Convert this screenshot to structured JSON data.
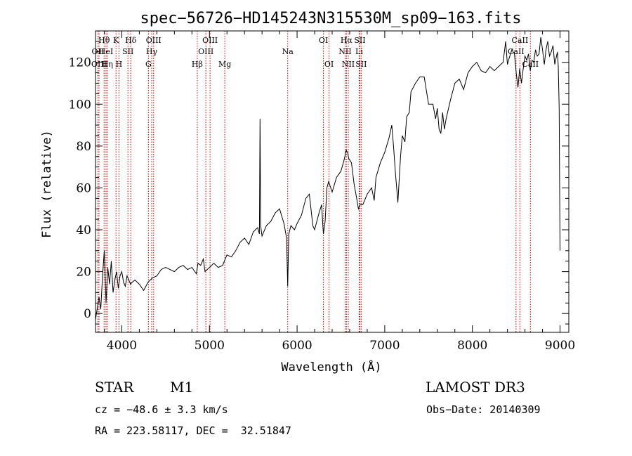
{
  "chart_data": {
    "type": "line",
    "title": "spec−56726−HD145243N315530M_sp09−163.fits",
    "xlabel": "Wavelength (Å)",
    "ylabel": "Flux (relative)",
    "xlim": [
      3700,
      9100
    ],
    "ylim": [
      -9,
      135
    ],
    "xticks": [
      4000,
      5000,
      6000,
      7000,
      8000,
      9000
    ],
    "yticks": [
      0,
      20,
      40,
      60,
      80,
      100,
      120
    ],
    "x_minor_step": 200,
    "y_minor_step": 5,
    "spectrum": {
      "x": [
        3700,
        3740,
        3760,
        3780,
        3800,
        3820,
        3840,
        3860,
        3880,
        3900,
        3920,
        3940,
        3960,
        3980,
        4000,
        4020,
        4040,
        4060,
        4080,
        4100,
        4120,
        4150,
        4200,
        4250,
        4300,
        4350,
        4400,
        4450,
        4500,
        4550,
        4600,
        4650,
        4700,
        4750,
        4800,
        4850,
        4870,
        4900,
        4930,
        4950,
        5000,
        5050,
        5100,
        5150,
        5200,
        5250,
        5300,
        5350,
        5400,
        5450,
        5500,
        5550,
        5570,
        5577,
        5584,
        5600,
        5650,
        5700,
        5750,
        5800,
        5850,
        5880,
        5893,
        5906,
        5930,
        5970,
        6000,
        6050,
        6100,
        6140,
        6180,
        6200,
        6250,
        6280,
        6300,
        6320,
        6340,
        6360,
        6400,
        6450,
        6500,
        6540,
        6560,
        6575,
        6590,
        6620,
        6650,
        6680,
        6700,
        6720,
        6750,
        6800,
        6850,
        6880,
        6900,
        6950,
        7000,
        7050,
        7080,
        7100,
        7120,
        7150,
        7180,
        7200,
        7230,
        7250,
        7280,
        7300,
        7350,
        7400,
        7450,
        7500,
        7550,
        7580,
        7600,
        7620,
        7640,
        7660,
        7680,
        7700,
        7750,
        7800,
        7850,
        7900,
        7950,
        8000,
        8050,
        8100,
        8150,
        8200,
        8250,
        8300,
        8350,
        8380,
        8400,
        8420,
        8450,
        8480,
        8500,
        8520,
        8540,
        8560,
        8580,
        8600,
        8620,
        8640,
        8660,
        8680,
        8700,
        8720,
        8740,
        8760,
        8780,
        8800,
        8820,
        8840,
        8860,
        8880,
        8900,
        8920,
        8940,
        8960,
        8970,
        8980,
        8990,
        9000
      ],
      "y": [
        -3,
        8,
        2,
        18,
        30,
        5,
        22,
        14,
        25,
        10,
        16,
        20,
        12,
        18,
        20,
        15,
        13,
        18,
        16,
        14,
        15,
        16,
        14,
        11,
        15,
        17,
        18,
        21,
        22,
        21,
        20,
        22,
        23,
        21,
        22,
        19,
        24,
        23,
        26,
        20,
        22,
        24,
        22,
        23,
        28,
        27,
        30,
        34,
        36,
        33,
        39,
        41,
        38,
        93,
        42,
        37,
        42,
        44,
        48,
        50,
        43,
        36,
        13,
        38,
        42,
        40,
        43,
        47,
        55,
        57,
        42,
        40,
        48,
        52,
        38,
        44,
        60,
        63,
        58,
        65,
        68,
        74,
        78,
        77,
        74,
        72,
        62,
        55,
        50,
        52,
        52,
        57,
        60,
        54,
        65,
        72,
        77,
        84,
        90,
        80,
        68,
        53,
        75,
        85,
        82,
        94,
        96,
        106,
        110,
        113,
        113,
        100,
        100,
        93,
        98,
        88,
        86,
        96,
        88,
        93,
        102,
        110,
        112,
        107,
        115,
        118,
        120,
        116,
        115,
        118,
        116,
        118,
        120,
        130,
        119,
        122,
        126,
        124,
        115,
        108,
        117,
        110,
        117,
        123,
        121,
        124,
        116,
        121,
        120,
        126,
        123,
        124,
        132,
        126,
        119,
        126,
        130,
        123,
        125,
        128,
        119,
        123,
        125,
        118,
        98,
        30
      ]
    },
    "spectral_lines": [
      {
        "name": "Hθ",
        "wavelength": 3798,
        "row": 1
      },
      {
        "name": "OII",
        "wavelength": 3727,
        "row": 2
      },
      {
        "name": "OIII",
        "wavelength": 3740,
        "row": 3
      },
      {
        "name": "Hη",
        "wavelength": 3835,
        "row": 3
      },
      {
        "name": "HeI",
        "wavelength": 3820,
        "row": 2
      },
      {
        "name": "K",
        "wavelength": 3934,
        "row": 1
      },
      {
        "name": "H",
        "wavelength": 3968,
        "row": 3
      },
      {
        "name": "SII",
        "wavelength": 4070,
        "row": 2
      },
      {
        "name": "Hδ",
        "wavelength": 4102,
        "row": 1
      },
      {
        "name": "OIII",
        "wavelength": 4363,
        "row": 1
      },
      {
        "name": "Hγ",
        "wavelength": 4341,
        "row": 2
      },
      {
        "name": "G",
        "wavelength": 4304,
        "row": 3
      },
      {
        "name": "Hβ",
        "wavelength": 4861,
        "row": 3
      },
      {
        "name": "OIII",
        "wavelength": 4959,
        "row": 2
      },
      {
        "name": "OIII",
        "wavelength": 5007,
        "row": 1
      },
      {
        "name": "Mg",
        "wavelength": 5175,
        "row": 3
      },
      {
        "name": "Na",
        "wavelength": 5893,
        "row": 2
      },
      {
        "name": "OI",
        "wavelength": 6300,
        "row": 1
      },
      {
        "name": "OI",
        "wavelength": 6364,
        "row": 3
      },
      {
        "name": "Hα",
        "wavelength": 6563,
        "row": 1
      },
      {
        "name": "NII",
        "wavelength": 6548,
        "row": 2
      },
      {
        "name": "NII",
        "wavelength": 6584,
        "row": 3
      },
      {
        "name": "SII",
        "wavelength": 6716,
        "row": 1
      },
      {
        "name": "Li",
        "wavelength": 6708,
        "row": 2
      },
      {
        "name": "SII",
        "wavelength": 6731,
        "row": 3
      },
      {
        "name": "CaII",
        "wavelength": 8542,
        "row": 1
      },
      {
        "name": "CaII",
        "wavelength": 8498,
        "row": 2
      },
      {
        "name": "CaII",
        "wavelength": 8662,
        "row": 3
      }
    ]
  },
  "info": {
    "class": "STAR",
    "subclass": "M1",
    "survey": "LAMOST DR3",
    "cz": "cz = −48.6 ± 3.3 km/s",
    "obs_date": "Obs−Date: 20140309",
    "coords": "RA = 223.58117, DEC =  32.51847"
  },
  "colors": {
    "spectrum": "#000000",
    "line_markers": "#cc0000",
    "axes": "#000000"
  }
}
